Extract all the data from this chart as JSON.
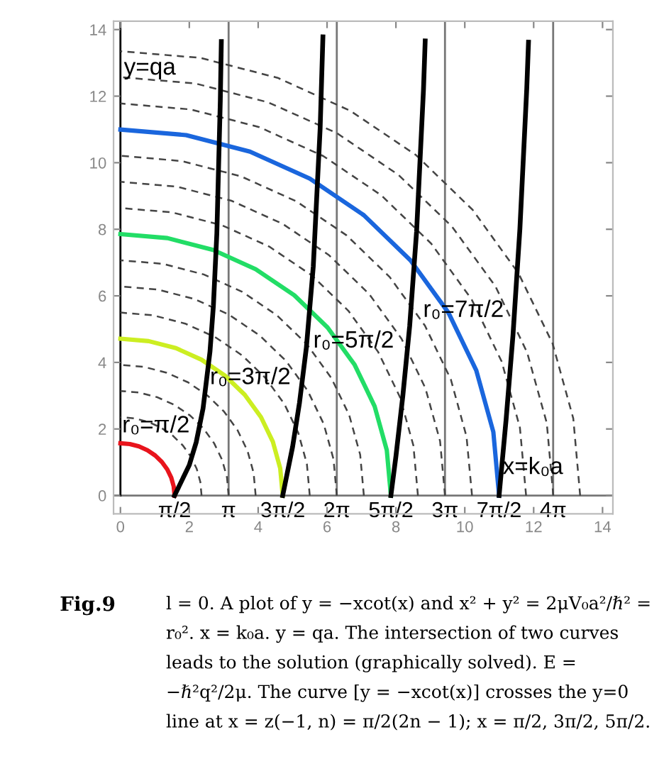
{
  "chart_data": {
    "type": "line",
    "xlim": [
      -0.2,
      14.3
    ],
    "ylim": [
      -0.55,
      14.25
    ],
    "xticks": [
      0,
      2,
      4,
      6,
      8,
      10,
      12,
      14
    ],
    "yticks": [
      0,
      2,
      4,
      6,
      8,
      10,
      12,
      14
    ],
    "x2lim": [
      -0.2,
      14.3
    ],
    "x2ticks": [
      {
        "value": 1.571,
        "label": "π/2"
      },
      {
        "value": 3.142,
        "label": "π"
      },
      {
        "value": 4.712,
        "label": "3π/2"
      },
      {
        "value": 6.283,
        "label": "2π"
      },
      {
        "value": 7.854,
        "label": "5π/2"
      },
      {
        "value": 9.425,
        "label": "3π"
      },
      {
        "value": 10.996,
        "label": "7π/2"
      },
      {
        "value": 12.566,
        "label": "4π"
      }
    ],
    "grid": false,
    "legend": false,
    "marker": "none",
    "series": [
      {
        "color": "#444444",
        "line_style": "dashed",
        "x": [
          2.356,
          2.32,
          2.214,
          2.04,
          1.805,
          1.514,
          1.178,
          0.806,
          0.409,
          0
        ],
        "values": [
          0,
          0.409,
          0.806,
          1.178,
          1.514,
          1.805,
          2.04,
          2.214,
          2.32,
          2.356
        ]
      },
      {
        "color": "#444444",
        "line_style": "dashed",
        "x": [
          3.142,
          3.094,
          2.952,
          2.721,
          2.407,
          2.02,
          1.571,
          1.075,
          0.545,
          0
        ],
        "values": [
          0,
          0.545,
          1.075,
          1.571,
          2.02,
          2.407,
          2.721,
          2.952,
          3.094,
          3.142
        ]
      },
      {
        "color": "#444444",
        "line_style": "dashed",
        "x": [
          3.927,
          3.867,
          3.69,
          3.401,
          3.008,
          2.524,
          1.964,
          1.343,
          0.682,
          0
        ],
        "values": [
          0,
          0.682,
          1.343,
          1.964,
          2.524,
          3.008,
          3.401,
          3.69,
          3.867,
          3.927
        ]
      },
      {
        "color": "#444444",
        "line_style": "dashed",
        "x": [
          5.498,
          5.414,
          5.166,
          4.761,
          4.211,
          3.534,
          2.749,
          1.88,
          0.954,
          0
        ],
        "values": [
          0,
          0.954,
          1.88,
          2.749,
          3.534,
          4.211,
          4.761,
          5.166,
          5.414,
          5.498
        ]
      },
      {
        "color": "#444444",
        "line_style": "dashed",
        "x": [
          6.283,
          6.188,
          5.904,
          5.441,
          4.813,
          4.039,
          3.142,
          2.149,
          1.091,
          0
        ],
        "values": [
          0,
          1.091,
          2.149,
          3.142,
          4.039,
          4.813,
          5.441,
          5.904,
          6.188,
          6.283
        ]
      },
      {
        "color": "#444444",
        "line_style": "dashed",
        "x": [
          7.069,
          6.962,
          6.643,
          6.122,
          5.415,
          4.544,
          3.535,
          2.418,
          1.227,
          0
        ],
        "values": [
          0,
          1.227,
          2.418,
          3.535,
          4.544,
          5.415,
          6.122,
          6.643,
          6.962,
          7.069
        ]
      },
      {
        "color": "#444444",
        "line_style": "dashed",
        "x": [
          8.639,
          8.508,
          8.118,
          7.481,
          6.617,
          5.553,
          4.32,
          2.955,
          1.5,
          0
        ],
        "values": [
          0,
          1.5,
          2.955,
          4.32,
          5.553,
          6.617,
          7.481,
          8.118,
          8.508,
          8.639
        ]
      },
      {
        "color": "#444444",
        "line_style": "dashed",
        "x": [
          9.425,
          9.282,
          8.857,
          8.162,
          7.22,
          6.058,
          4.713,
          3.223,
          1.636,
          0
        ],
        "values": [
          0,
          1.636,
          3.223,
          4.713,
          6.058,
          7.22,
          8.162,
          8.857,
          9.282,
          9.425
        ]
      },
      {
        "color": "#444444",
        "line_style": "dashed",
        "x": [
          10.21,
          10.05,
          9.594,
          8.842,
          7.821,
          6.563,
          5.105,
          3.492,
          1.772,
          0
        ],
        "values": [
          0,
          1.772,
          3.492,
          5.105,
          6.563,
          7.821,
          8.842,
          9.594,
          10.05,
          10.21
        ]
      },
      {
        "color": "#444444",
        "line_style": "dashed",
        "x": [
          11.78,
          11.6,
          11.07,
          10.2,
          9.023,
          7.572,
          5.89,
          4.029,
          2.045,
          0
        ],
        "values": [
          0,
          2.045,
          4.029,
          5.89,
          7.572,
          9.023,
          10.2,
          11.07,
          11.6,
          11.78
        ]
      },
      {
        "color": "#444444",
        "line_style": "dashed",
        "x": [
          12.57,
          12.38,
          11.81,
          10.89,
          9.629,
          8.08,
          6.285,
          4.299,
          2.182,
          0
        ],
        "values": [
          0,
          2.182,
          4.299,
          6.285,
          8.08,
          9.629,
          10.89,
          11.81,
          12.38,
          12.57
        ]
      },
      {
        "color": "#444444",
        "line_style": "dashed",
        "x": [
          13.35,
          13.15,
          12.55,
          11.56,
          10.23,
          8.581,
          6.675,
          4.566,
          2.318,
          0
        ],
        "values": [
          0,
          2.318,
          4.566,
          6.675,
          8.581,
          10.23,
          11.56,
          12.55,
          13.15,
          13.35
        ]
      },
      {
        "color": "#e8141c",
        "line_style": "solid",
        "x": [
          1.571,
          1.547,
          1.476,
          1.36,
          1.203,
          1.01,
          0.785,
          0.537,
          0.273,
          0
        ],
        "values": [
          0,
          0.273,
          0.537,
          0.785,
          1.01,
          1.203,
          1.36,
          1.476,
          1.547,
          1.571
        ]
      },
      {
        "color": "#ccee22",
        "line_style": "solid",
        "x": [
          4.712,
          4.64,
          4.428,
          4.081,
          3.61,
          3.029,
          2.356,
          1.612,
          0.818,
          0
        ],
        "values": [
          0,
          0.818,
          1.612,
          2.356,
          3.029,
          3.61,
          4.081,
          4.428,
          4.64,
          4.712
        ]
      },
      {
        "color": "#22dd66",
        "line_style": "solid",
        "x": [
          7.854,
          7.735,
          7.38,
          6.802,
          6.016,
          5.049,
          3.927,
          2.686,
          1.363,
          0
        ],
        "values": [
          0,
          1.363,
          2.686,
          3.927,
          5.049,
          6.016,
          6.802,
          7.38,
          7.735,
          7.854
        ]
      },
      {
        "color": "#1a66dd",
        "line_style": "solid",
        "x": [
          10.996,
          10.829,
          10.333,
          9.523,
          8.423,
          7.068,
          5.498,
          3.761,
          1.909,
          0
        ],
        "values": [
          0,
          1.909,
          3.761,
          5.498,
          7.068,
          8.423,
          9.523,
          10.333,
          10.829,
          10.996
        ]
      },
      {
        "color": "#000000",
        "line_style": "solid",
        "x": [
          1.571,
          2.0,
          2.2,
          2.4,
          2.6,
          2.7,
          2.8,
          2.9,
          2.93
        ],
        "values": [
          0,
          0.915,
          1.6,
          2.62,
          4.32,
          5.71,
          7.88,
          11.85,
          13.64
        ]
      },
      {
        "color": "#000000",
        "line_style": "solid",
        "x": [
          4.712,
          5.0,
          5.2,
          5.4,
          5.6,
          5.8,
          5.88
        ],
        "values": [
          0,
          1.467,
          2.79,
          4.45,
          6.88,
          11.04,
          13.78
        ]
      },
      {
        "color": "#000000",
        "line_style": "solid",
        "x": [
          7.854,
          8.0,
          8.2,
          8.4,
          8.6,
          8.8,
          8.85
        ],
        "values": [
          0,
          1.18,
          2.99,
          5.1,
          7.93,
          12.19,
          13.66
        ]
      },
      {
        "color": "#000000",
        "line_style": "solid",
        "x": [
          10.996,
          11.2,
          11.4,
          11.6,
          11.8,
          11.85
        ],
        "values": [
          0,
          2.29,
          4.83,
          8.01,
          12.24,
          13.62
        ]
      }
    ],
    "ref_lines": [
      {
        "axis": "y",
        "value": 0,
        "color": "#777777"
      },
      {
        "axis": "x",
        "value": 0,
        "color": "#000000"
      },
      {
        "axis": "x",
        "value": 3.1416,
        "color": "#777777"
      },
      {
        "axis": "x",
        "value": 6.2832,
        "color": "#777777"
      },
      {
        "axis": "x",
        "value": 9.4248,
        "color": "#777777"
      },
      {
        "axis": "x",
        "value": 12.566,
        "color": "#777777"
      }
    ],
    "annotations": [
      {
        "text": "y=qa",
        "x": 0.1,
        "y": 12.5
      },
      {
        "text": "r₀=π/2",
        "x": 0.05,
        "y": 1.75
      },
      {
        "text": "r₀=3π/2",
        "x": 2.6,
        "y": 3.2
      },
      {
        "text": "r₀=5π/2",
        "x": 5.6,
        "y": 4.3
      },
      "r₀=7π/2",
      {
        "text": "x=k₀a",
        "x": 11.1,
        "y": 0.5
      },
      "Fig.9",
      "l = 0. A plot of y = −xcot(x) and x² + y² = 2μV₀a²/ℏ² = r₀². x = k₀a. y = qa. The intersection of two curves leads to the solution (graphically solved). E = −ℏ²q²/2μ. The curve [y = −xcot(x)] crosses the y=0 line at x = z(−1, n) = π/2(2n − 1); x = π/2, 3π/2, 5π/2."
    ]
  }
}
